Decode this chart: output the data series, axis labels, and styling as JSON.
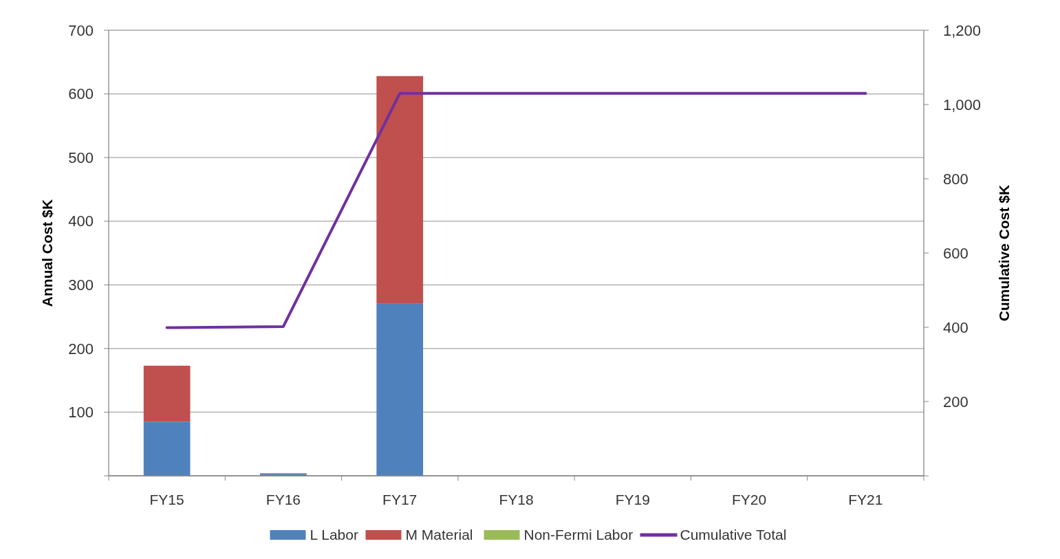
{
  "chart_data": {
    "type": "bar",
    "stacked": true,
    "categories": [
      "FY15",
      "FY16",
      "FY17",
      "FY18",
      "FY19",
      "FY20",
      "FY21"
    ],
    "ylabel": "Annual Cost $K",
    "y2label": "Cumulative Cost $K",
    "ylim": [
      0,
      700
    ],
    "yticks": [
      {
        "value": 0,
        "label": null
      },
      100,
      200,
      300,
      400,
      500,
      600,
      700
    ],
    "y2lim": [
      0,
      1200
    ],
    "y2ticks": [
      {
        "value": 0,
        "label": null
      },
      {
        "value": 200,
        "label": "200"
      },
      {
        "value": 400,
        "label": "400"
      },
      {
        "value": 600,
        "label": "600"
      },
      {
        "value": 800,
        "label": "800"
      },
      {
        "value": 1000,
        "label": "1,000"
      },
      {
        "value": 1200,
        "label": "1,200"
      }
    ],
    "grid": "y",
    "legend": "bottom",
    "series": [
      {
        "name": "L Labor",
        "color": "#4f81bd",
        "values": [
          85,
          3,
          271,
          0,
          0,
          0,
          0
        ]
      },
      {
        "name": "M Material",
        "color": "#c0504d",
        "values": [
          88,
          1,
          357,
          0,
          0,
          0,
          0
        ]
      },
      {
        "name": "Non-Fermi Labor",
        "color": "#9bbb59",
        "values": [
          0,
          0,
          0,
          0,
          0,
          0,
          0
        ]
      },
      {
        "name": "Cumulative Total",
        "type": "line",
        "axis": "y2",
        "color": "#7030a0",
        "marker": "none",
        "values": [
          399,
          402,
          1030,
          1030,
          1030,
          1030,
          1030
        ]
      }
    ]
  }
}
